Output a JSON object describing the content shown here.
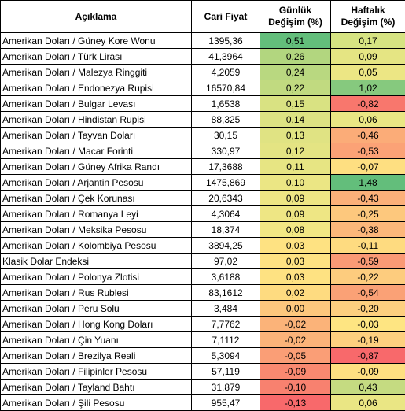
{
  "header": {
    "col1": "Açıklama",
    "col2": "Cari Fiyat",
    "col3_line1": "Günlük",
    "col3_line2": "Değişim (%)",
    "col4_line1": "Haftalık",
    "col4_line2": "Değişim (%)"
  },
  "rows": [
    {
      "desc": "Amerikan Doları / Güney Kore Wonu",
      "price": "1395,36",
      "daily": "0,51",
      "weekly": "0,17",
      "daily_color": "#63be7b",
      "weekly_color": "#d6e382"
    },
    {
      "desc": "Amerikan Doları / Türk Lirası",
      "price": "41,3964",
      "daily": "0,26",
      "weekly": "0,09",
      "daily_color": "#b2d67f",
      "weekly_color": "#e5e583"
    },
    {
      "desc": "Amerikan Doları / Malezya Ringgiti",
      "price": "4,2059",
      "daily": "0,24",
      "weekly": "0,05",
      "daily_color": "#b9d880",
      "weekly_color": "#ece684"
    },
    {
      "desc": "Amerikan Doları / Endonezya Rupisi",
      "price": "16570,84",
      "daily": "0,22",
      "weekly": "1,02",
      "daily_color": "#c1da80",
      "weekly_color": "#86c97e"
    },
    {
      "desc": "Amerikan Doları / Bulgar Levası",
      "price": "1,6538",
      "daily": "0,15",
      "weekly": "-0,82",
      "daily_color": "#d9e282",
      "weekly_color": "#f8776d"
    },
    {
      "desc": "Amerikan Doları / Hindistan Rupisi",
      "price": "88,325",
      "daily": "0,14",
      "weekly": "0,06",
      "daily_color": "#dde383",
      "weekly_color": "#eae684"
    },
    {
      "desc": "Amerikan Doları /  Tayvan Doları",
      "price": "30,15",
      "daily": "0,13",
      "weekly": "-0,46",
      "daily_color": "#e0e383",
      "weekly_color": "#fbac78"
    },
    {
      "desc": "Amerikan Doları / Macar Forinti",
      "price": "330,97",
      "daily": "0,12",
      "weekly": "-0,53",
      "daily_color": "#e4e483",
      "weekly_color": "#fba276"
    },
    {
      "desc": "Amerikan Doları / Güney Afrika Randı",
      "price": "17,3688",
      "daily": "0,11",
      "weekly": "-0,07",
      "daily_color": "#e7e583",
      "weekly_color": "#fedf81"
    },
    {
      "desc": "Amerikan Doları / Arjantin Pesosu",
      "price": "1475,869",
      "daily": "0,10",
      "weekly": "1,48",
      "daily_color": "#ebe684",
      "weekly_color": "#63be7b"
    },
    {
      "desc": "Amerikan Doları / Çek Korunası",
      "price": "20,6343",
      "daily": "0,09",
      "weekly": "-0,43",
      "daily_color": "#eee684",
      "weekly_color": "#fbb079"
    },
    {
      "desc": "Amerikan Doları / Romanya Leyi",
      "price": "4,3064",
      "daily": "0,09",
      "weekly": "-0,25",
      "daily_color": "#eee684",
      "weekly_color": "#fdc87d"
    },
    {
      "desc": "Amerikan Doları / Meksika Pesosu",
      "price": "18,374",
      "daily": "0,08",
      "weekly": "-0,38",
      "daily_color": "#f2e784",
      "weekly_color": "#fcb77a"
    },
    {
      "desc": "Amerikan Doları / Kolombiya Pesosu",
      "price": "3894,25",
      "daily": "0,03",
      "weekly": "-0,11",
      "daily_color": "#fee282",
      "weekly_color": "#fedb80"
    },
    {
      "desc": "Klasik Dolar Endeksi",
      "price": "97,02",
      "daily": "0,03",
      "weekly": "-0,59",
      "daily_color": "#fee282",
      "weekly_color": "#fa9a75"
    },
    {
      "desc": "Amerikan Doları / Polonya Zlotisi",
      "price": "3,6188",
      "daily": "0,03",
      "weekly": "-0,22",
      "daily_color": "#fee282",
      "weekly_color": "#fdcc7e"
    },
    {
      "desc": "Amerikan Doları / Rus Rublesi",
      "price": "83,1612",
      "daily": "0,02",
      "weekly": "-0,54",
      "daily_color": "#fedb80",
      "weekly_color": "#faa176"
    },
    {
      "desc": "Amerikan Doları / Peru Solu",
      "price": "3,484",
      "daily": "0,00",
      "weekly": "-0,20",
      "daily_color": "#fdc77d",
      "weekly_color": "#fdcf7f"
    },
    {
      "desc": "Amerikan Doları / Hong Kong Doları",
      "price": "7,7762",
      "daily": "-0,02",
      "weekly": "-0,03",
      "daily_color": "#fbb379",
      "weekly_color": "#fee582"
    },
    {
      "desc": "Amerikan Doları / Çin Yuanı",
      "price": "7,1112",
      "daily": "-0,02",
      "weekly": "-0,19",
      "daily_color": "#fbb379",
      "weekly_color": "#fdd07f"
    },
    {
      "desc": "Amerikan Doları / Brezilya Reali",
      "price": "5,3094",
      "daily": "-0,05",
      "weekly": "-0,87",
      "daily_color": "#fa9e76",
      "weekly_color": "#f8696b"
    },
    {
      "desc": "Amerikan Doları / Filipinler Pesosu",
      "price": "57,119",
      "daily": "-0,09",
      "weekly": "-0,09",
      "daily_color": "#f98970",
      "weekly_color": "#fee081"
    },
    {
      "desc": "Amerikan Doları / Tayland Bahtı",
      "price": "31,879",
      "daily": "-0,10",
      "weekly": "0,43",
      "daily_color": "#f8816f",
      "weekly_color": "#c5db81"
    },
    {
      "desc": "Amerikan Doları / Şili Pesosu",
      "price": "955,47",
      "daily": "-0,13",
      "weekly": "0,06",
      "daily_color": "#f8696b",
      "weekly_color": "#eae684"
    }
  ]
}
